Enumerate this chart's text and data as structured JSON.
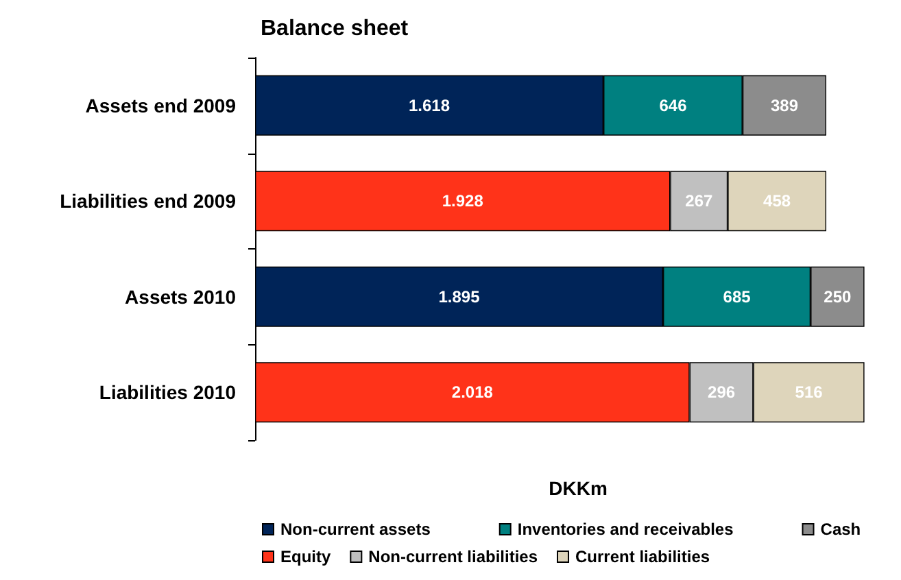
{
  "chart_data": {
    "type": "bar",
    "orientation": "horizontal",
    "stacked": true,
    "title": "Balance sheet",
    "xlabel": "DKKm",
    "categories": [
      "Assets end 2009",
      "Liabilities end 2009",
      "Assets 2010",
      "Liabilities 2010"
    ],
    "series": [
      {
        "name": "Non-current assets",
        "color": "#002458",
        "values": [
          1618,
          null,
          1895,
          null
        ],
        "value_labels": [
          "1.618",
          null,
          "1.895",
          null
        ]
      },
      {
        "name": "Inventories and receivables",
        "color": "#008080",
        "values": [
          646,
          null,
          685,
          null
        ],
        "value_labels": [
          "646",
          null,
          "685",
          null
        ]
      },
      {
        "name": "Cash",
        "color": "#8c8c8c",
        "values": [
          389,
          null,
          250,
          null
        ],
        "value_labels": [
          "389",
          null,
          "250",
          null
        ]
      },
      {
        "name": "Equity",
        "color": "#ff3319",
        "values": [
          null,
          1928,
          null,
          2018
        ],
        "value_labels": [
          null,
          "1.928",
          null,
          "2.018"
        ]
      },
      {
        "name": "Non-current liabilities",
        "color": "#c0c0c0",
        "values": [
          null,
          267,
          null,
          296
        ],
        "value_labels": [
          null,
          "267",
          null,
          "296"
        ]
      },
      {
        "name": "Current liabilities",
        "color": "#ded5bb",
        "values": [
          null,
          458,
          null,
          516
        ],
        "value_labels": [
          null,
          "458",
          null,
          "516"
        ]
      }
    ],
    "legend": "bottom",
    "grid": false,
    "tick_labels": "y"
  }
}
